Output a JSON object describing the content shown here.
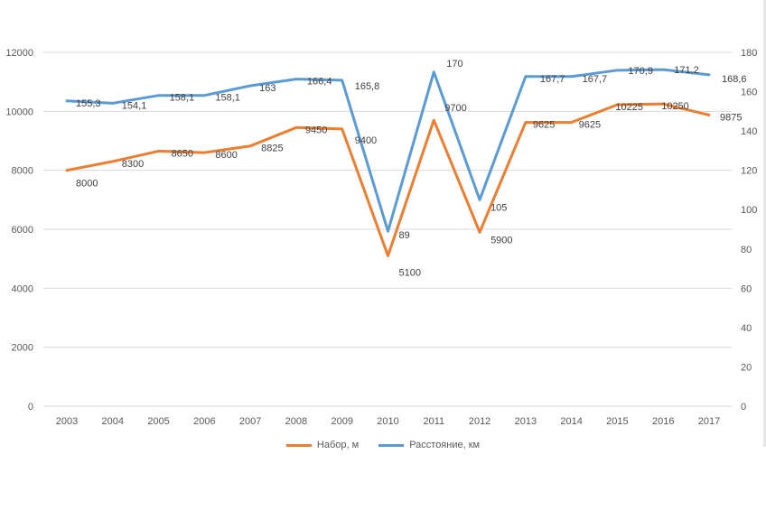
{
  "chart_data": {
    "type": "line",
    "categories": [
      "2003",
      "2004",
      "2005",
      "2006",
      "2007",
      "2008",
      "2009",
      "2010",
      "2011",
      "2012",
      "2013",
      "2014",
      "2015",
      "2016",
      "2017"
    ],
    "series": [
      {
        "name": "Набор, м",
        "axis": "left",
        "color": "#ED7D31",
        "values": [
          8000,
          8300,
          8650,
          8600,
          8825,
          9450,
          9400,
          5100,
          9700,
          5900,
          9625,
          9625,
          10225,
          10250,
          9875
        ],
        "labels": [
          "8000",
          "8300",
          "8650",
          "8600",
          "8825",
          "9450",
          "9400",
          "5100",
          "9700",
          "5900",
          "9625",
          "9625",
          "10225",
          "10250",
          "9875"
        ]
      },
      {
        "name": "Расстояние, км",
        "axis": "right",
        "color": "#5B9BD5",
        "values": [
          155.3,
          154.1,
          158.1,
          158.1,
          163,
          166.4,
          165.8,
          89,
          170,
          105,
          167.7,
          167.7,
          170.9,
          171.2,
          168.6
        ],
        "labels": [
          "155,3",
          "154,1",
          "158,1",
          "158,1",
          "163",
          "166,4",
          "165,8",
          "89",
          "170",
          "105",
          "167,7",
          "167,7",
          "170,9",
          "171,2",
          "168,6"
        ]
      }
    ],
    "y_left": {
      "min": 0,
      "max": 12000,
      "ticks": [
        "0",
        "2000",
        "4000",
        "6000",
        "8000",
        "10000",
        "12000"
      ]
    },
    "y_right": {
      "min": 0,
      "max": 180,
      "ticks": [
        "0",
        "20",
        "40",
        "60",
        "80",
        "100",
        "120",
        "140",
        "160",
        "180"
      ]
    },
    "grid": true,
    "legend": "bottom"
  }
}
